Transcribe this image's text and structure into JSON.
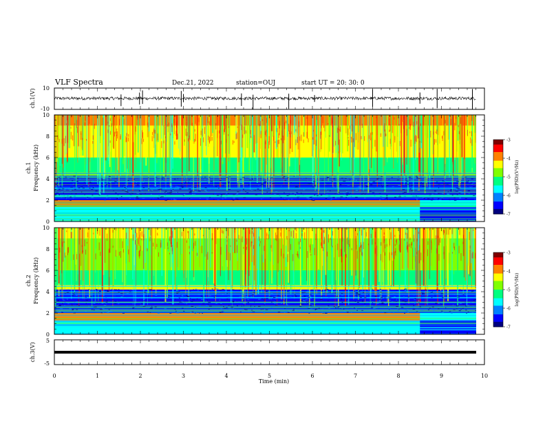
{
  "header": {
    "title": "VLF Spectra",
    "date": "Dec.21, 2022",
    "station": "station=OUJ",
    "start": "start UT =  20: 30: 0"
  },
  "colors": {
    "scale": [
      "#00007f",
      "#0000ff",
      "#0080ff",
      "#00ffff",
      "#00ff80",
      "#80ff00",
      "#ffff00",
      "#ff8000",
      "#ff0000",
      "#7f0000"
    ]
  },
  "chart_data": [
    {
      "type": "line",
      "panel": "ch1-waveform",
      "ylabel": "ch.1(V)",
      "ylim": [
        -10,
        10
      ],
      "yticks": [
        "10",
        "-10"
      ],
      "baseline": 0,
      "amplitude_typical": 1.5,
      "spikes_min": [
        1.55,
        1.98,
        2.05,
        2.95,
        3.0,
        4.35,
        4.62,
        5.45,
        6.05,
        7.4,
        8.5,
        8.9,
        9.72
      ]
    },
    {
      "type": "heatmap",
      "panel": "ch1-spectrogram",
      "ylabel": "ch.1\nFrequency (kHz)",
      "ylim": [
        0,
        10
      ],
      "yticks": [
        "10",
        "8",
        "6",
        "4",
        "2",
        "0"
      ],
      "xlim": [
        0,
        10
      ],
      "bands": [
        {
          "f_khz": [
            9.0,
            10.0
          ],
          "level": 6.6
        },
        {
          "f_khz": [
            6.0,
            9.0
          ],
          "level": 5.6
        },
        {
          "f_khz": [
            4.6,
            6.0
          ],
          "level": 4.4
        },
        {
          "f_khz": [
            4.3,
            4.6
          ],
          "level": 4.8
        },
        {
          "f_khz": [
            2.0,
            4.3
          ],
          "level": 1.4
        },
        {
          "f_khz": [
            1.35,
            2.0
          ],
          "level": 7.4
        },
        {
          "f_khz": [
            0.0,
            1.35
          ],
          "level": 3.0
        }
      ],
      "change_min": 8.5,
      "colorbar": {
        "label": "log(PSD)(V²/Hz)",
        "range": [
          -7,
          -3
        ],
        "ticks": [
          "-3",
          "-4",
          "-5",
          "-6",
          "-7"
        ]
      }
    },
    {
      "type": "heatmap",
      "panel": "ch2-spectrogram",
      "ylabel": "ch.2\nFrequency (kHz)",
      "ylim": [
        0,
        10
      ],
      "yticks": [
        "10",
        "8",
        "6",
        "4",
        "2",
        "0"
      ],
      "xlim": [
        0,
        10
      ],
      "bands": [
        {
          "f_khz": [
            9.0,
            10.0
          ],
          "level": 6.2
        },
        {
          "f_khz": [
            6.0,
            9.0
          ],
          "level": 5.4
        },
        {
          "f_khz": [
            4.6,
            6.0
          ],
          "level": 3.6
        },
        {
          "f_khz": [
            4.2,
            4.6
          ],
          "level": 6.4
        },
        {
          "f_khz": [
            2.0,
            4.2
          ],
          "level": 1.4
        },
        {
          "f_khz": [
            1.3,
            2.0
          ],
          "level": 7.2
        },
        {
          "f_khz": [
            0.0,
            1.3
          ],
          "level": 3.2
        }
      ],
      "change_min": 8.5,
      "colorbar": {
        "label": "log(PSD)(V²/Hz)",
        "range": [
          -7,
          -3
        ],
        "ticks": [
          "-3",
          "-4",
          "-5",
          "-6",
          "-7"
        ]
      }
    },
    {
      "type": "line",
      "panel": "ch3-waveform",
      "ylabel": "ch.3(V)",
      "ylim": [
        -5,
        5
      ],
      "yticks": [
        "5",
        "-5"
      ],
      "baseline": 0,
      "amplitude_typical": 0.3
    }
  ],
  "xaxis": {
    "label": "Time (min)",
    "ticks": [
      "0",
      "1",
      "2",
      "3",
      "4",
      "5",
      "6",
      "7",
      "8",
      "9",
      "10"
    ],
    "range": [
      0,
      10
    ]
  }
}
